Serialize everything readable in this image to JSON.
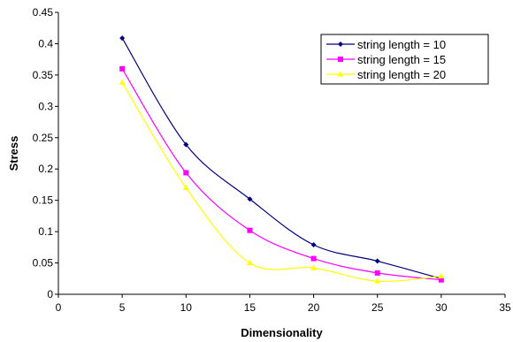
{
  "chart_data": {
    "type": "line",
    "title": "",
    "xlabel": "Dimensionality",
    "ylabel": "Stress",
    "xlim": [
      0,
      35
    ],
    "ylim": [
      0,
      0.45
    ],
    "xticks": [
      0,
      5,
      10,
      15,
      20,
      25,
      30,
      35
    ],
    "yticks": [
      0,
      0.05,
      0.1,
      0.15,
      0.2,
      0.25,
      0.3,
      0.35,
      0.4,
      0.45
    ],
    "xtick_labels": [
      "0",
      "5",
      "10",
      "15",
      "20",
      "25",
      "30",
      "35"
    ],
    "ytick_labels": [
      "0",
      "0.05",
      "0.1",
      "0.15",
      "0.2",
      "0.25",
      "0.3",
      "0.35",
      "0.4",
      "0.45"
    ],
    "grid": false,
    "legend_position": "top-right",
    "smooth": true,
    "series": [
      {
        "name": "string length = 10",
        "color": "#000080",
        "marker": "diamond",
        "x": [
          5,
          10,
          15,
          20,
          25,
          30
        ],
        "y": [
          0.409,
          0.239,
          0.152,
          0.079,
          0.053,
          0.025
        ]
      },
      {
        "name": "string length = 15",
        "color": "#FF00FF",
        "marker": "square",
        "x": [
          5,
          10,
          15,
          20,
          25,
          30
        ],
        "y": [
          0.36,
          0.194,
          0.102,
          0.057,
          0.034,
          0.023
        ]
      },
      {
        "name": "string length = 20",
        "color": "#FFFF00",
        "marker": "triangle",
        "x": [
          5,
          10,
          15,
          20,
          25,
          30
        ],
        "y": [
          0.338,
          0.17,
          0.05,
          0.042,
          0.021,
          0.029
        ]
      }
    ]
  }
}
